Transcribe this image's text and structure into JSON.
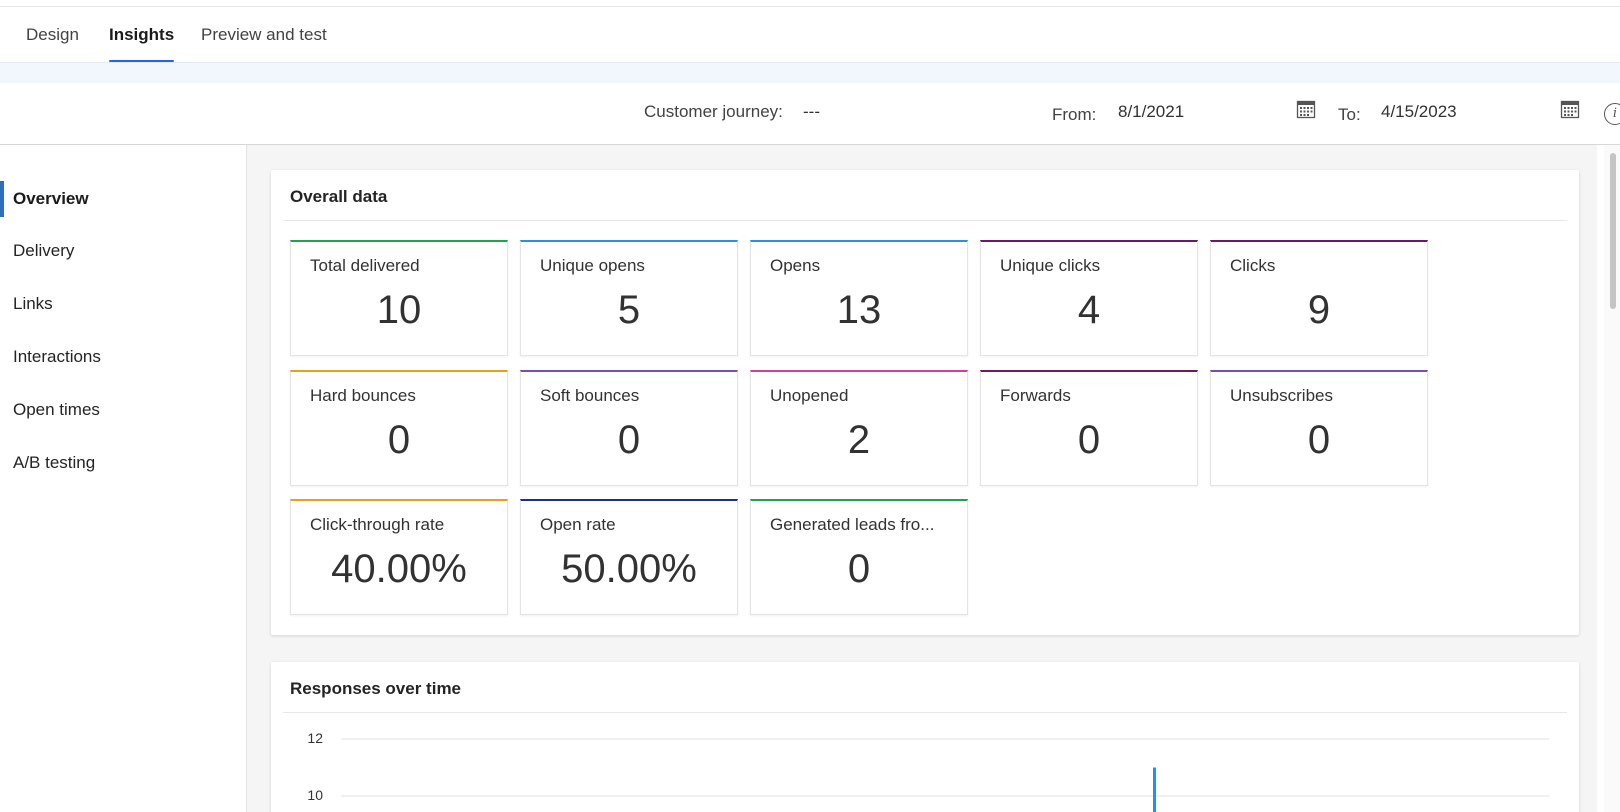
{
  "tabs": [
    {
      "label": "Design",
      "active": false
    },
    {
      "label": "Insights",
      "active": true
    },
    {
      "label": "Preview and test",
      "active": false
    }
  ],
  "filter": {
    "journey_label": "Customer journey:",
    "journey_value": "---",
    "from_label": "From:",
    "from_value": "8/1/2021",
    "to_label": "To:",
    "to_value": "4/15/2023",
    "calendar_icon": "calendar-icon",
    "info_icon": "info-icon"
  },
  "nav": {
    "items": [
      {
        "label": "Overview",
        "active": true
      },
      {
        "label": "Delivery",
        "active": false
      },
      {
        "label": "Links",
        "active": false
      },
      {
        "label": "Interactions",
        "active": false
      },
      {
        "label": "Open times",
        "active": false
      },
      {
        "label": "A/B testing",
        "active": false
      }
    ]
  },
  "overall": {
    "title": "Overall data",
    "tiles": [
      {
        "label": "Total delivered",
        "value": "10",
        "color": "#23a24d"
      },
      {
        "label": "Unique opens",
        "value": "5",
        "color": "#2d8fe0"
      },
      {
        "label": "Opens",
        "value": "13",
        "color": "#2d8fe0"
      },
      {
        "label": "Unique clicks",
        "value": "4",
        "color": "#6b1a6b"
      },
      {
        "label": "Clicks",
        "value": "9",
        "color": "#6b1a6b"
      },
      {
        "label": "Hard bounces",
        "value": "0",
        "color": "#e3a21a"
      },
      {
        "label": "Soft bounces",
        "value": "0",
        "color": "#7b4fa8"
      },
      {
        "label": "Unopened",
        "value": "2",
        "color": "#d13f9c"
      },
      {
        "label": "Forwards",
        "value": "0",
        "color": "#6b1a6b"
      },
      {
        "label": "Unsubscribes",
        "value": "0",
        "color": "#7b4fa8"
      },
      {
        "label": "Click-through rate",
        "value": "40.00%",
        "color": "#e3a21a"
      },
      {
        "label": "Open rate",
        "value": "50.00%",
        "color": "#1a2e8c"
      },
      {
        "label": "Generated leads fro...",
        "value": "0",
        "color": "#23a24d"
      }
    ]
  },
  "responses": {
    "title": "Responses over time"
  },
  "chart_data": {
    "type": "bar",
    "title": "Responses over time",
    "y_ticks": [
      "12",
      "10"
    ],
    "ylim": [
      10,
      12
    ],
    "grid": true,
    "bar_color": "#1e90ff",
    "visible_bar_top_value": 11
  }
}
